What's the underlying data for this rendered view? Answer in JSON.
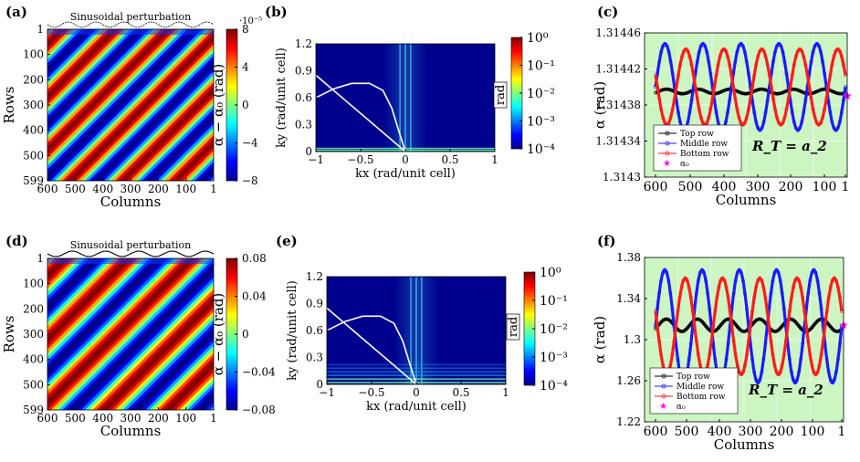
{
  "chart_data": [
    {
      "id": "a",
      "type": "heatmap",
      "panel_label": "(a)",
      "title": "Sinusoidal perturbation",
      "xlabel": "Columns",
      "ylabel": "Rows",
      "xticks": [
        "600",
        "500",
        "400",
        "300",
        "200",
        "100",
        "1"
      ],
      "yticks": [
        "1",
        "100",
        "200",
        "300",
        "400",
        "500",
        "599"
      ],
      "colorbar": {
        "label": "α − α₀ (rad)",
        "exponent": "·10⁻⁵",
        "ticks": [
          "8",
          "4",
          "0",
          "−4",
          "−8"
        ],
        "range": [
          -8,
          8
        ],
        "colormap": "jet"
      },
      "stripes": {
        "periods": 6,
        "direction": "diagonal"
      }
    },
    {
      "id": "b",
      "type": "heatmap",
      "panel_label": "(b)",
      "xlabel": "kx (rad/unit cell)",
      "ylabel": "ky (rad/unit cell)",
      "xticks": [
        "−1",
        "−0.5",
        "0",
        "0.5",
        "1"
      ],
      "yticks": [
        "0",
        "0.3",
        "0.6",
        "0.9",
        "1.2"
      ],
      "xlim": [
        -1,
        1
      ],
      "ylim": [
        0,
        1.2
      ],
      "colorbar": {
        "label": "rad",
        "ticks": [
          "10⁰",
          "10⁻¹",
          "10⁻²",
          "10⁻³",
          "10⁻⁴"
        ],
        "scale": "log",
        "range": [
          0.0001,
          1
        ],
        "colormap": "jet"
      },
      "curve_label": "dispersion curve"
    },
    {
      "id": "c",
      "type": "line",
      "panel_label": "(c)",
      "xlabel": "Columns",
      "ylabel": "α (rad)",
      "xticks": [
        "600",
        "500",
        "400",
        "300",
        "200",
        "100",
        "1"
      ],
      "yticks": [
        "1.31446",
        "1.31442",
        "1.31438",
        "1.31434",
        "1.3143"
      ],
      "xlim": [
        600,
        1
      ],
      "ylim": [
        1.3143,
        1.31446
      ],
      "annotation": "R_T = a_2",
      "legend": [
        "Top row",
        "Middle row",
        "Bottom row",
        "α₀"
      ],
      "series": [
        {
          "name": "Top row",
          "color": "#000000",
          "mean": 1.314395,
          "amplitude": 2.5e-06,
          "periods": 6,
          "phase": 0.9
        },
        {
          "name": "Middle row",
          "color": "#1a1aff",
          "mean": 1.3144,
          "amplitude": 4.8e-05,
          "periods": 5,
          "phase": 0.0
        },
        {
          "name": "Bottom row",
          "color": "#ff1a1a",
          "mean": 1.3144,
          "amplitude": 4.2e-05,
          "periods": 5,
          "phase": 0.45
        }
      ],
      "alpha0": {
        "x": 1,
        "y": 1.31439,
        "color": "#ff00ff"
      }
    },
    {
      "id": "d",
      "type": "heatmap",
      "panel_label": "(d)",
      "title": "Sinusoidal perturbation",
      "xlabel": "Columns",
      "ylabel": "Rows",
      "xticks": [
        "600",
        "500",
        "400",
        "300",
        "200",
        "100",
        "1"
      ],
      "yticks": [
        "1",
        "100",
        "200",
        "300",
        "400",
        "500",
        "599"
      ],
      "colorbar": {
        "label": "α − α₀ (rad)",
        "ticks": [
          "0.08",
          "0.04",
          "0",
          "−0.04",
          "−0.08"
        ],
        "range": [
          -0.08,
          0.08
        ],
        "colormap": "jet"
      },
      "stripes": {
        "periods": 5,
        "direction": "diagonal"
      }
    },
    {
      "id": "e",
      "type": "heatmap",
      "panel_label": "(e)",
      "xlabel": "kx (rad/unit cell)",
      "ylabel": "ky (rad/unit cell)",
      "xticks": [
        "−1",
        "−0.5",
        "0",
        "0.5",
        "1"
      ],
      "yticks": [
        "0",
        "0.3",
        "0.6",
        "0.9",
        "1.2"
      ],
      "xlim": [
        -1,
        1
      ],
      "ylim": [
        0,
        1.2
      ],
      "colorbar": {
        "label": "rad",
        "ticks": [
          "10⁰",
          "10⁻¹",
          "10⁻²",
          "10⁻³",
          "10⁻⁴"
        ],
        "scale": "log",
        "range": [
          0.0001,
          1
        ],
        "colormap": "jet"
      },
      "curve_label": "dispersion curve"
    },
    {
      "id": "f",
      "type": "line",
      "panel_label": "(f)",
      "xlabel": "Columns",
      "ylabel": "α (rad)",
      "xticks": [
        "600",
        "500",
        "400",
        "300",
        "200",
        "100",
        "1"
      ],
      "yticks": [
        "1.38",
        "1.34",
        "1.3",
        "1.26",
        "1.22"
      ],
      "xlim": [
        600,
        1
      ],
      "ylim": [
        1.22,
        1.38
      ],
      "annotation": "R_T = a_2",
      "legend": [
        "Top row",
        "Middle row",
        "Bottom row",
        "α₀"
      ],
      "series": [
        {
          "name": "Top row",
          "color": "#000000",
          "mean": 1.314,
          "amplitude": 0.006,
          "periods": 6,
          "phase": 0.9
        },
        {
          "name": "Middle row",
          "color": "#1a1aff",
          "mean": 1.313,
          "amplitude": 0.055,
          "periods": 5,
          "phase": 0.0
        },
        {
          "name": "Bottom row",
          "color": "#ff1a1a",
          "mean": 1.313,
          "amplitude": 0.047,
          "periods": 5,
          "phase": 0.45
        }
      ],
      "alpha0": {
        "x": 1,
        "y": 1.314,
        "color": "#ff00ff"
      }
    }
  ]
}
